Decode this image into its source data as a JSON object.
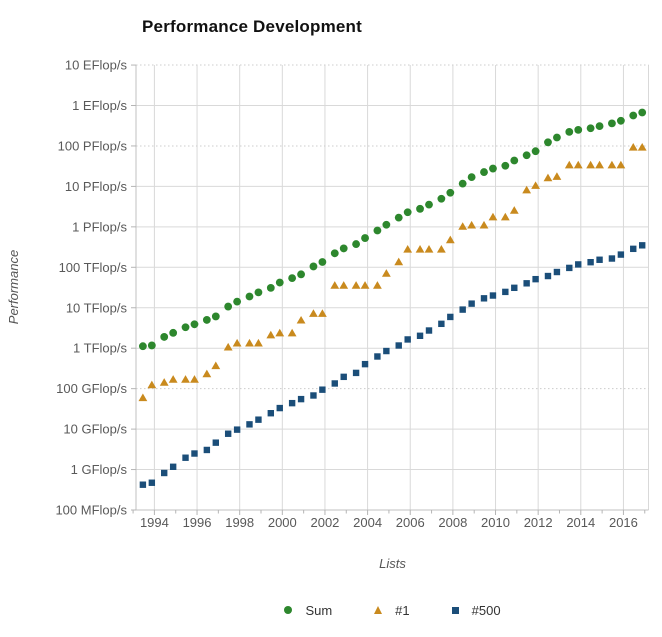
{
  "colors": {
    "sum": "#2d872d",
    "rank1": "#c98a1e",
    "rank500": "#1b4e79",
    "gridline": "#d9d9d9",
    "gridline_dotted": "#cccccc",
    "axis_line": "#c0c0c0",
    "tick_text": "#595959",
    "title_text": "#111111"
  },
  "chart_data": {
    "type": "scatter",
    "title": "Performance Development",
    "xlabel": "Lists",
    "ylabel": "Performance",
    "y_scale": "log",
    "y_unit": "TFlop/s",
    "legend_position": "bottom",
    "grid": true,
    "x_range": [
      1993.1,
      2017.2
    ],
    "ylim_labels": [
      "100 MFlop/s",
      "10 EFlop/s"
    ],
    "x_tick_years": [
      1994,
      1996,
      1998,
      2000,
      2002,
      2004,
      2006,
      2008,
      2010,
      2012,
      2014,
      2016
    ],
    "y_tick_labels": [
      "10 EFlop/s",
      "1 EFlop/s",
      "100 PFlop/s",
      "10 PFlop/s",
      "1 PFlop/s",
      "100 TFlop/s",
      "10 TFlop/s",
      "1 TFlop/s",
      "100 GFlop/s",
      "10 GFlop/s",
      "1 GFlop/s",
      "100 MFlop/s"
    ],
    "lists_years": [
      1993.46,
      1993.88,
      1994.46,
      1994.88,
      1995.46,
      1995.88,
      1996.46,
      1996.88,
      1997.46,
      1997.88,
      1998.46,
      1998.88,
      1999.46,
      1999.88,
      2000.46,
      2000.88,
      2001.46,
      2001.88,
      2002.46,
      2002.88,
      2003.46,
      2003.88,
      2004.46,
      2004.88,
      2005.46,
      2005.88,
      2006.46,
      2006.88,
      2007.46,
      2007.88,
      2008.46,
      2008.88,
      2009.46,
      2009.88,
      2010.46,
      2010.88,
      2011.46,
      2011.88,
      2012.46,
      2012.88,
      2013.46,
      2013.88,
      2014.46,
      2014.88,
      2015.46,
      2015.88,
      2016.46,
      2016.88
    ],
    "series": [
      {
        "name": "Sum",
        "marker": "circle",
        "color": "#2d872d",
        "values_tflops": [
          1.12,
          1.17,
          1.9,
          2.4,
          3.3,
          3.9,
          5.0,
          6.1,
          10.7,
          14.2,
          19.0,
          24.0,
          31.0,
          42.0,
          54.0,
          67.0,
          105,
          135,
          222,
          293,
          375,
          528,
          813,
          1127,
          1691,
          2300,
          2791,
          3541,
          4946,
          6963,
          11704,
          16953,
          22606,
          27611,
          32432,
          43673,
          58880,
          74152,
          123029,
          161992,
          222984,
          250110,
          273766,
          308857,
          361790,
          418737,
          566776,
          672161
        ]
      },
      {
        "name": "#1",
        "marker": "triangle",
        "color": "#c98a1e",
        "values_tflops": [
          0.0597,
          0.1242,
          0.1434,
          0.1702,
          0.1702,
          0.1702,
          0.2324,
          0.3682,
          1.068,
          1.338,
          1.338,
          1.338,
          2.1216,
          2.3796,
          2.3796,
          4.938,
          7.226,
          7.226,
          35.86,
          35.86,
          35.86,
          35.86,
          35.86,
          70.72,
          136.8,
          280.6,
          280.6,
          280.6,
          280.6,
          478.2,
          1026,
          1105,
          1105,
          1759,
          1759,
          2566,
          8162,
          10510,
          16325,
          17590,
          33863,
          33863,
          33863,
          33863,
          33863,
          33863,
          93015,
          93015
        ]
      },
      {
        "name": "#500",
        "marker": "square",
        "color": "#1b4e79",
        "values_tflops": [
          0.000422,
          0.000472,
          0.000822,
          0.00117,
          0.00196,
          0.00249,
          0.00305,
          0.00462,
          0.00768,
          0.0097,
          0.0131,
          0.0171,
          0.0247,
          0.0331,
          0.0438,
          0.0551,
          0.0678,
          0.0943,
          0.1343,
          0.1958,
          0.2451,
          0.4034,
          0.624,
          0.8506,
          1.166,
          1.646,
          2.026,
          2.737,
          4.005,
          5.93,
          9.0,
          12.64,
          17.1,
          20.05,
          24.67,
          31.11,
          40.19,
          50.9,
          60.82,
          76.46,
          96.62,
          117.8,
          133.7,
          153.6,
          164.8,
          206.3,
          286.1,
          349.3
        ]
      }
    ]
  }
}
